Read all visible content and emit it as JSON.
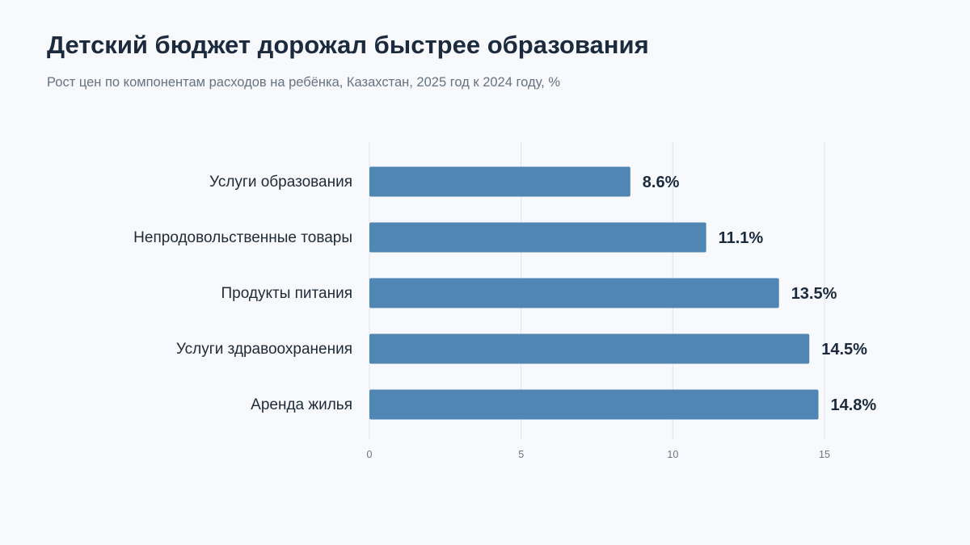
{
  "header": {
    "title": "Детский бюджет дорожал быстрее образования",
    "subtitle": "Рост цен по компонентам расходов на ребёнка, Казахстан, 2025 год к 2024 году, %"
  },
  "chart_data": {
    "type": "bar",
    "orientation": "horizontal",
    "categories": [
      "Услуги образования",
      "Непродовольственные товары",
      "Продукты питания",
      "Услуги здравоохранения",
      "Аренда жилья"
    ],
    "values": [
      8.6,
      11.1,
      13.5,
      14.5,
      14.8
    ],
    "value_labels": [
      "8.6%",
      "11.1%",
      "13.5%",
      "14.5%",
      "14.8%"
    ],
    "x_ticks": [
      0,
      5,
      10,
      15
    ],
    "xlim": [
      0,
      15
    ],
    "grid": "vertical",
    "legend": "none",
    "bar_color": "#5086b4"
  }
}
